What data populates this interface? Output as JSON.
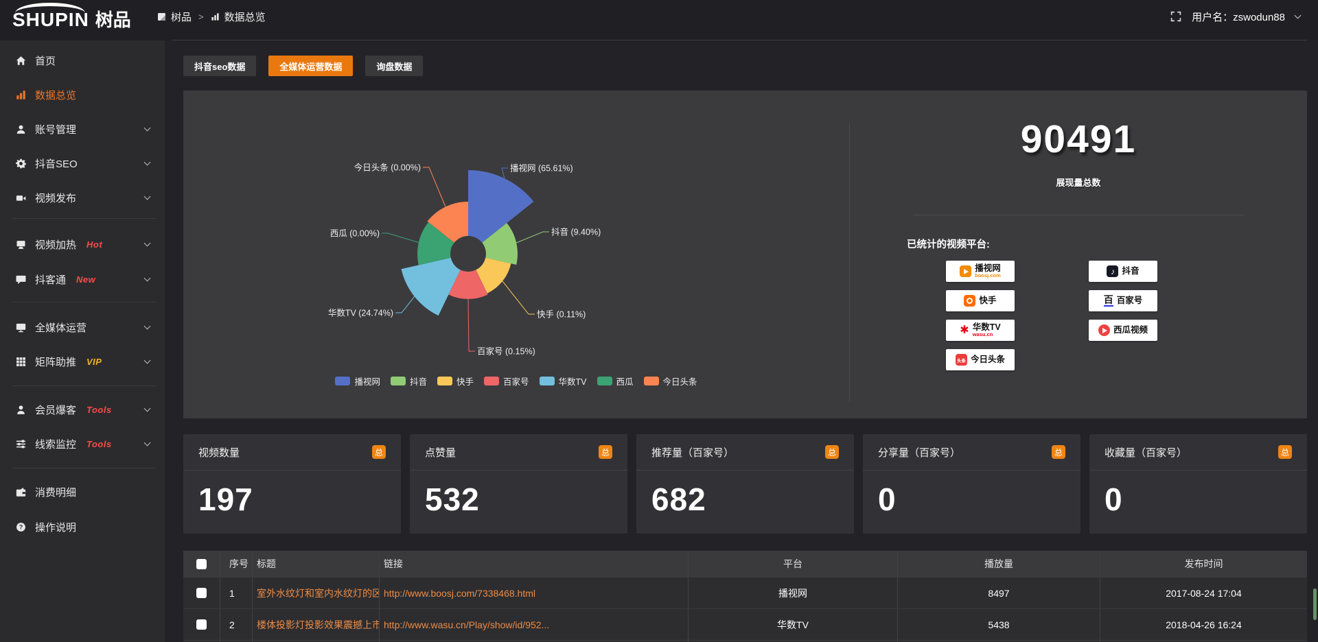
{
  "topbar": {
    "logo_en": "SHUPIN",
    "logo_cn": "树品",
    "breadcrumb": [
      "树品",
      "数据总览"
    ],
    "breadcrumb_sep": ">",
    "username": "用户名：zswodun88"
  },
  "sidebar": {
    "items": [
      {
        "label": "首页",
        "icon": "home"
      },
      {
        "label": "数据总览",
        "icon": "bar-chart",
        "active": true
      },
      {
        "label": "账号管理",
        "icon": "user",
        "chevron": true
      },
      {
        "label": "抖音SEO",
        "icon": "gear",
        "chevron": true
      },
      {
        "label": "视频发布",
        "icon": "video",
        "chevron": true
      },
      {
        "divider": true
      },
      {
        "label": "视频加热",
        "icon": "heat",
        "badge": "Hot",
        "badge_color": "#ff4a4a",
        "chevron": true
      },
      {
        "label": "抖客通",
        "icon": "chat",
        "badge": "New",
        "badge_color": "#ff4a4a",
        "chevron": true
      },
      {
        "divider": true
      },
      {
        "label": "全媒体运营",
        "icon": "monitor",
        "chevron": true
      },
      {
        "label": "矩阵助推",
        "icon": "grid",
        "badge": "VIP",
        "badge_color": "#f0b32c",
        "chevron": true
      },
      {
        "divider": true
      },
      {
        "label": "会员爆客",
        "icon": "member",
        "badge": "Tools",
        "badge_color": "#ff4a4a",
        "chevron": true
      },
      {
        "label": "线索监控",
        "icon": "sliders",
        "badge": "Tools",
        "badge_color": "#ff4a4a",
        "chevron": true
      },
      {
        "divider": true
      },
      {
        "label": "消费明细",
        "icon": "wallet"
      },
      {
        "label": "操作说明",
        "icon": "help"
      }
    ]
  },
  "tabs": [
    {
      "label": "抖音seo数据",
      "active": false
    },
    {
      "label": "全媒体运营数据",
      "active": true
    },
    {
      "label": "询盘数据",
      "active": false
    }
  ],
  "chart_data": {
    "type": "pie",
    "subtype": "nightingale-rose",
    "inner_radius": 26,
    "legend_position": "bottom",
    "items": [
      {
        "label": "播视网",
        "percent": 65.61,
        "color": "#5470c6",
        "radius": 122
      },
      {
        "label": "抖音",
        "percent": 9.4,
        "color": "#91cc75",
        "radius": 72
      },
      {
        "label": "快手",
        "percent": 0.11,
        "color": "#fac858",
        "radius": 64
      },
      {
        "label": "百家号",
        "percent": 0.15,
        "color": "#ee6666",
        "radius": 66
      },
      {
        "label": "华数TV",
        "percent": 24.74,
        "color": "#73c0de",
        "radius": 100
      },
      {
        "label": "西瓜",
        "percent": 0.0,
        "color": "#3ba272",
        "radius": 74
      },
      {
        "label": "今日头条",
        "percent": 0.0,
        "color": "#fc8452",
        "radius": 76
      }
    ]
  },
  "summary": {
    "total_value": "90491",
    "total_label": "展现量总数",
    "platforms_label": "已统计的视频平台:",
    "platform_cards": {
      "col1": [
        {
          "name": "播视网",
          "sub": "boosj.com",
          "icon": "boosj",
          "color": "#f28a00"
        },
        {
          "name": "快手",
          "icon": "kuaishou",
          "color": "#ff6c00"
        },
        {
          "name": "华数TV",
          "sub": "wasu.cn",
          "icon": "wasu",
          "color": "#e60012"
        },
        {
          "name": "今日头条",
          "icon": "toutiao",
          "icon_text": "头条",
          "color": "#ed3b3b"
        }
      ],
      "col2": [
        {
          "name": "抖音",
          "icon": "douyin",
          "color": "#161823"
        },
        {
          "name": "百家号",
          "icon": "baijia",
          "icon_text": "百",
          "color": "#2932e1"
        },
        {
          "name": "西瓜视频",
          "icon": "xigua",
          "color": "#f04142"
        }
      ]
    }
  },
  "stat_cards": [
    {
      "title": "视频数量",
      "badge": "总",
      "value": "197"
    },
    {
      "title": "点赞量",
      "badge": "总",
      "value": "532"
    },
    {
      "title": "推荐量（百家号）",
      "badge": "总",
      "value": "682"
    },
    {
      "title": "分享量（百家号）",
      "badge": "总",
      "value": "0"
    },
    {
      "title": "收藏量（百家号）",
      "badge": "总",
      "value": "0"
    }
  ],
  "table": {
    "headers": [
      "",
      "序号",
      "标题",
      "链接",
      "平台",
      "播放量",
      "发布时间"
    ],
    "rows": [
      {
        "no": "1",
        "title": "室外水纹灯和室内水纹灯的区别和简介",
        "link": "http://www.boosj.com/7338468.html",
        "platform": "播视网",
        "plays": "8497",
        "time": "2017-08-24 17:04"
      },
      {
        "no": "2",
        "title": "楼体投影灯投影效果震撼上市",
        "link": "http://www.wasu.cn/Play/show/id/952...",
        "platform": "华数TV",
        "plays": "5438",
        "time": "2018-04-26 16:24"
      }
    ]
  },
  "colors": {
    "accent_orange": "#e9790f",
    "link_orange": "#ec8c46",
    "active_menu": "#ee7623",
    "badge_orange": "#ef8513"
  }
}
